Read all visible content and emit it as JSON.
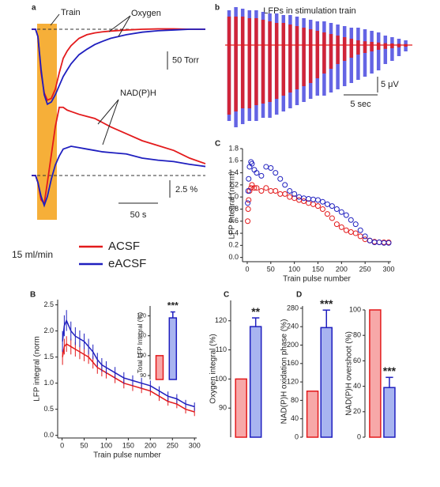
{
  "legend_note": "15 ml/min",
  "chart_data": [
    {
      "type": "trace",
      "label": "a",
      "annotations": [
        "Train",
        "Oxygen"
      ],
      "x": [
        0,
        5,
        8,
        12,
        16,
        20,
        25,
        30,
        35,
        40,
        45,
        50,
        60,
        70,
        80,
        90,
        100,
        120,
        140,
        160,
        180,
        200,
        220
      ],
      "train": [
        7,
        32
      ],
      "series": [
        {
          "name": "ACSF",
          "color": "#e31a1c",
          "values": [
            0,
            0,
            -20,
            -120,
            -175,
            -195,
            -190,
            -165,
            -120,
            -80,
            -60,
            -45,
            -25,
            -15,
            -10,
            -7,
            -5,
            -2,
            0,
            1,
            1,
            0,
            0
          ]
        },
        {
          "name": "eACSF",
          "color": "#1f1fbf",
          "values": [
            0,
            0,
            -20,
            -110,
            -180,
            -206,
            -200,
            -180,
            -155,
            -130,
            -112,
            -95,
            -70,
            -55,
            -42,
            -33,
            -25,
            -15,
            -8,
            -4,
            -2,
            0,
            0
          ]
        }
      ],
      "y_scalebar": {
        "value": 50,
        "label": "50 Torr"
      }
    },
    {
      "type": "trace",
      "annotations": [
        "NAD(P)H"
      ],
      "x": [
        0,
        5,
        8,
        12,
        16,
        20,
        25,
        30,
        35,
        40,
        45,
        50,
        60,
        70,
        80,
        90,
        100,
        120,
        140,
        160,
        180,
        200,
        220
      ],
      "series": [
        {
          "color": "#e31a1c",
          "values": [
            0,
            0,
            -1,
            -3.5,
            -4,
            -1,
            3,
            7,
            9.8,
            9.8,
            9.4,
            9.2,
            8.8,
            8.5,
            8.2,
            7.6,
            7,
            6,
            5,
            4.3,
            3.6,
            2.5,
            1.7
          ]
        },
        {
          "color": "#1f1fbf",
          "values": [
            0,
            0,
            -1,
            -3,
            -4.3,
            -3,
            -0.5,
            1.5,
            2.8,
            3.8,
            4,
            4.2,
            4,
            3.8,
            3.6,
            3.4,
            3.3,
            3.1,
            2.5,
            2.2,
            2,
            1.6,
            1.3
          ]
        }
      ],
      "y_scalebar": {
        "value": 2.5,
        "label": "2.5 %"
      },
      "x_scalebar": {
        "value": 50,
        "label": "50 s"
      }
    },
    {
      "type": "envelope",
      "label": "b",
      "title": "LFPs in stimulation train",
      "x": [
        0,
        1,
        2,
        3,
        4,
        5,
        6,
        7,
        8,
        9,
        10,
        11,
        12,
        13,
        14,
        15,
        16,
        17,
        18,
        19,
        20,
        21,
        22,
        23,
        24,
        25,
        26
      ],
      "series": [
        {
          "color": "#4a4ae0",
          "upper": [
            11,
            12,
            11.5,
            11,
            11,
            10.5,
            10,
            10,
            9.5,
            9.5,
            9,
            8.5,
            8,
            7.5,
            7.5,
            7,
            6.5,
            6,
            5.5,
            5.5,
            5,
            4.5,
            4,
            3,
            2.5,
            2,
            1.5
          ],
          "lower": [
            -24,
            -26,
            -25,
            -24,
            -24,
            -23,
            -23,
            -22,
            -21,
            -20,
            -19,
            -18,
            -17,
            -16,
            -16,
            -15,
            -14,
            -13,
            -12,
            -11,
            -10,
            -9,
            -8,
            -6,
            -5,
            -3.5,
            -2
          ]
        },
        {
          "color": "#e31a1c",
          "upper": [
            9,
            9,
            9,
            8.5,
            8.5,
            8,
            7.5,
            7,
            7,
            6.5,
            6,
            5.5,
            5,
            4.5,
            4,
            3.5,
            3,
            2.5,
            2,
            1.5,
            1.2,
            1,
            0.8,
            0.6,
            0.5,
            0.4,
            0.3
          ],
          "lower": [
            -22,
            -21,
            -20,
            -20,
            -19,
            -18.5,
            -18,
            -17,
            -16,
            -15,
            -14,
            -13,
            -12,
            -10.5,
            -9,
            -7.5,
            -6,
            -5,
            -4,
            -3,
            -2.5,
            -2,
            -1.5,
            -1.2,
            -1,
            -0.7,
            -0.5
          ]
        }
      ],
      "y_scalebar": {
        "value": 5,
        "label": "5 μV"
      },
      "x_scalebar": {
        "value": 5,
        "label": "5 sec"
      }
    },
    {
      "type": "scatter",
      "label": "C",
      "xlabel": "Train pulse number",
      "ylabel": "LFP integral (norm)",
      "x": [
        1,
        2,
        3,
        5,
        8,
        10,
        15,
        20,
        30,
        40,
        50,
        60,
        70,
        80,
        90,
        100,
        110,
        120,
        130,
        140,
        150,
        160,
        170,
        180,
        190,
        200,
        210,
        220,
        230,
        240,
        250,
        260,
        270,
        280,
        290,
        300
      ],
      "series": [
        {
          "color": "#e31a1c",
          "values": [
            0.6,
            0.8,
            0.95,
            1.1,
            1.15,
            1.2,
            1.15,
            1.15,
            1.1,
            1.15,
            1.1,
            1.1,
            1.05,
            1.05,
            1.0,
            0.98,
            0.95,
            0.93,
            0.9,
            0.88,
            0.85,
            0.8,
            0.72,
            0.65,
            0.55,
            0.5,
            0.45,
            0.42,
            0.4,
            0.35,
            0.3,
            0.28,
            0.26,
            0.25,
            0.25,
            0.25
          ]
        },
        {
          "color": "#1f1fbf",
          "values": [
            0.9,
            1.1,
            1.3,
            1.5,
            1.58,
            1.55,
            1.45,
            1.4,
            1.35,
            1.5,
            1.48,
            1.4,
            1.3,
            1.2,
            1.1,
            1.05,
            1.0,
            0.98,
            0.97,
            0.96,
            0.95,
            0.92,
            0.88,
            0.85,
            0.8,
            0.75,
            0.7,
            0.62,
            0.55,
            0.45,
            0.35,
            0.28,
            0.25,
            0.25,
            0.24,
            0.24
          ]
        }
      ],
      "xlim": [
        -10,
        305
      ],
      "xticks": [
        0,
        50,
        100,
        150,
        200,
        250,
        300
      ],
      "ylim": [
        -0.07,
        1.8
      ],
      "yticks": [
        {
          "value": 0,
          "label": "0.0"
        },
        0.2,
        0.4,
        0.6,
        0.8,
        {
          "value": 1,
          "label": "1.0"
        },
        1.2,
        1.4,
        1.6,
        1.8
      ]
    },
    {
      "type": "errorline",
      "label": "B",
      "xlabel": "Train pulse number",
      "ylabel": "LFP integral (norm",
      "x": [
        1,
        5,
        10,
        20,
        30,
        40,
        50,
        60,
        70,
        80,
        90,
        100,
        120,
        140,
        160,
        180,
        200,
        220,
        240,
        260,
        280,
        300
      ],
      "series": [
        {
          "color": "#e31a1c",
          "values": [
            1.5,
            1.7,
            1.75,
            1.7,
            1.65,
            1.6,
            1.55,
            1.5,
            1.4,
            1.3,
            1.25,
            1.2,
            1.1,
            1.0,
            0.95,
            0.9,
            0.85,
            0.75,
            0.65,
            0.6,
            0.5,
            0.45
          ],
          "errors": [
            0.15,
            0.15,
            0.15,
            0.15,
            0.14,
            0.14,
            0.13,
            0.13,
            0.12,
            0.12,
            0.12,
            0.11,
            0.1,
            0.1,
            0.1,
            0.09,
            0.09,
            0.09,
            0.08,
            0.08,
            0.08,
            0.08
          ]
        },
        {
          "color": "#1f1fbf",
          "values": [
            1.8,
            2.1,
            2.2,
            2.0,
            1.9,
            1.85,
            1.8,
            1.7,
            1.6,
            1.45,
            1.35,
            1.3,
            1.2,
            1.1,
            1.05,
            1.0,
            0.95,
            0.85,
            0.75,
            0.7,
            0.6,
            0.55
          ],
          "errors": [
            0.2,
            0.2,
            0.2,
            0.18,
            0.17,
            0.16,
            0.15,
            0.15,
            0.14,
            0.13,
            0.13,
            0.12,
            0.11,
            0.11,
            0.1,
            0.1,
            0.1,
            0.09,
            0.09,
            0.09,
            0.08,
            0.08
          ]
        }
      ],
      "xlim": [
        -10,
        305
      ],
      "xticks": [
        0,
        50,
        100,
        150,
        200,
        250,
        300
      ],
      "ylim": [
        -0.05,
        2.6
      ],
      "yticks": [
        {
          "value": 0,
          "label": "0.0"
        },
        0.5,
        {
          "value": 1,
          "label": "1.0"
        },
        1.5,
        {
          "value": 2,
          "label": "2.0"
        },
        2.5
      ]
    },
    {
      "type": "bar",
      "ylabel": "Total LFP Integral (%)",
      "values": [
        100,
        119
      ],
      "errors": [
        null,
        3
      ],
      "colors": [
        "#f7a8a8",
        "#a8b4f0"
      ],
      "edgecolors": [
        "#e31a1c",
        "#1f1fbf"
      ],
      "annotation": "***",
      "ylim": [
        88,
        125
      ],
      "yticks": [
        90,
        100,
        110,
        120
      ]
    },
    {
      "type": "bar",
      "label": "C",
      "ylabel": "Oxygen integral (%)",
      "values": [
        100,
        118
      ],
      "errors": [
        null,
        3
      ],
      "colors": [
        "#f7a8a8",
        "#a8b4f0"
      ],
      "edgecolors": [
        "#e31a1c",
        "#1f1fbf"
      ],
      "annotation": "**",
      "ylim": [
        80,
        127
      ],
      "yticks": [
        90,
        100,
        110,
        120
      ]
    },
    {
      "type": "bar",
      "label": "D",
      "ylabel": "NAD(P)H oxidation phase (%)",
      "values": [
        100,
        238
      ],
      "errors": [
        null,
        38
      ],
      "colors": [
        "#f7a8a8",
        "#a8b4f0"
      ],
      "edgecolors": [
        "#e31a1c",
        "#1f1fbf"
      ],
      "annotation": "***",
      "ylim": [
        0,
        285
      ],
      "yticks": [
        0,
        40,
        80,
        120,
        160,
        200,
        240,
        280
      ]
    },
    {
      "type": "bar",
      "ylabel": "NAD(P)H overshoot (%)",
      "values": [
        100,
        39
      ],
      "errors": [
        null,
        8
      ],
      "colors": [
        "#f7a8a8",
        "#a8b4f0"
      ],
      "edgecolors": [
        "#e31a1c",
        "#1f1fbf"
      ],
      "annotation": "***",
      "ylim": [
        0,
        100
      ],
      "yticks": [
        0,
        20,
        40,
        60,
        80,
        100
      ]
    }
  ]
}
